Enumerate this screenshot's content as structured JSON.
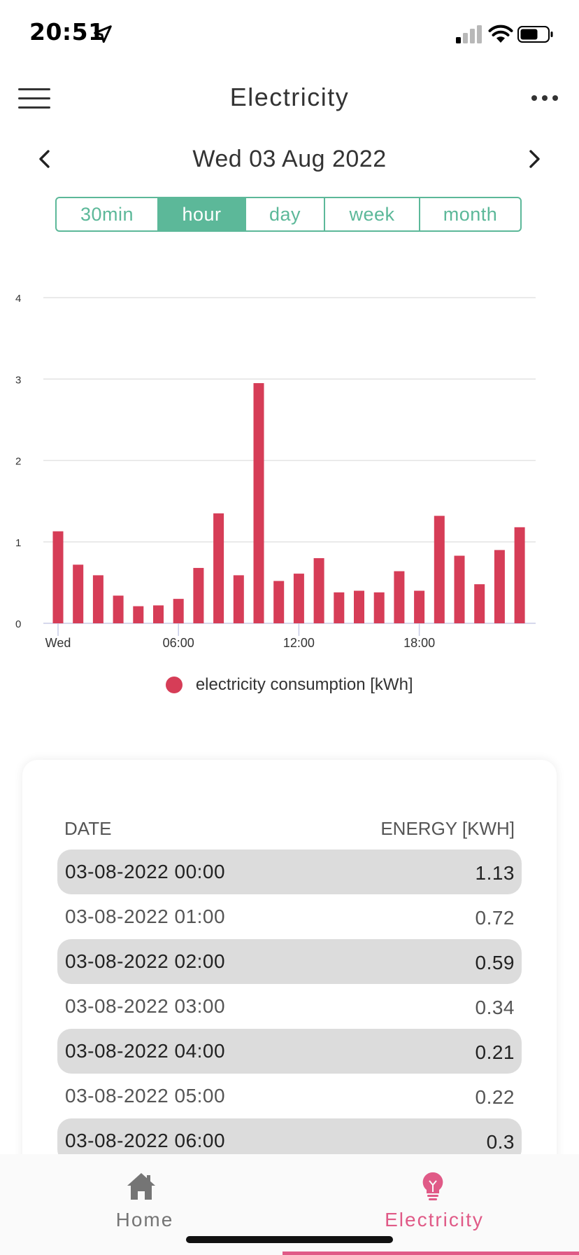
{
  "status_bar": {
    "time": "20:51",
    "icons": [
      "location-arrow-icon",
      "cellular-signal-icon",
      "wifi-icon",
      "battery-icon"
    ]
  },
  "header": {
    "title": "Electricity",
    "menu_icon": "hamburger-menu-icon",
    "more_icon": "more-dots-icon"
  },
  "date_nav": {
    "label": "Wed 03 Aug 2022",
    "prev_icon": "chevron-left-icon",
    "next_icon": "chevron-right-icon"
  },
  "segments": [
    {
      "label": "30min",
      "active": false
    },
    {
      "label": "hour",
      "active": true
    },
    {
      "label": "day",
      "active": false
    },
    {
      "label": "week",
      "active": false
    },
    {
      "label": "month",
      "active": false
    }
  ],
  "chart_data": {
    "type": "bar",
    "x_tick_labels": [
      "Wed",
      "06:00",
      "12:00",
      "18:00"
    ],
    "y_tick_labels": [
      "0",
      "1",
      "2",
      "3",
      "4"
    ],
    "ylim": [
      0,
      4
    ],
    "categories": [
      "00:00",
      "01:00",
      "02:00",
      "03:00",
      "04:00",
      "05:00",
      "06:00",
      "07:00",
      "08:00",
      "09:00",
      "10:00",
      "11:00",
      "12:00",
      "13:00",
      "14:00",
      "15:00",
      "16:00",
      "17:00",
      "18:00",
      "19:00",
      "20:00",
      "21:00",
      "22:00",
      "23:00"
    ],
    "series": [
      {
        "name": "electricity consumption [kWh]",
        "color": "#d63d57",
        "values": [
          1.13,
          0.72,
          0.59,
          0.34,
          0.21,
          0.22,
          0.3,
          0.68,
          1.35,
          0.59,
          2.95,
          0.52,
          0.61,
          0.8,
          0.38,
          0.4,
          0.38,
          0.64,
          0.4,
          1.32,
          0.83,
          0.48,
          0.9,
          1.18
        ]
      }
    ],
    "grid": true,
    "legend_position": "bottom-center",
    "gridline_color": "#e3e3e3",
    "axis_color": "#c8cce6"
  },
  "table": {
    "header_date": "DATE",
    "header_energy": "ENERGY [KWH]",
    "rows": [
      {
        "date": "03-08-2022 00:00",
        "value": "1.13"
      },
      {
        "date": "03-08-2022 01:00",
        "value": "0.72"
      },
      {
        "date": "03-08-2022 02:00",
        "value": "0.59"
      },
      {
        "date": "03-08-2022 03:00",
        "value": "0.34"
      },
      {
        "date": "03-08-2022 04:00",
        "value": "0.21"
      },
      {
        "date": "03-08-2022 05:00",
        "value": "0.22"
      },
      {
        "date": "03-08-2022 06:00",
        "value": "0.3"
      }
    ]
  },
  "tabbar": {
    "home_label": "Home",
    "home_icon": "home-icon",
    "electricity_label": "Electricity",
    "electricity_icon": "lightbulb-icon",
    "active_tab": "Electricity",
    "active_color": "#e05a87",
    "inactive_color": "#757575"
  },
  "colors": {
    "accent": "#5cb899",
    "bar": "#d63d57",
    "active_tab": "#e05a87"
  }
}
